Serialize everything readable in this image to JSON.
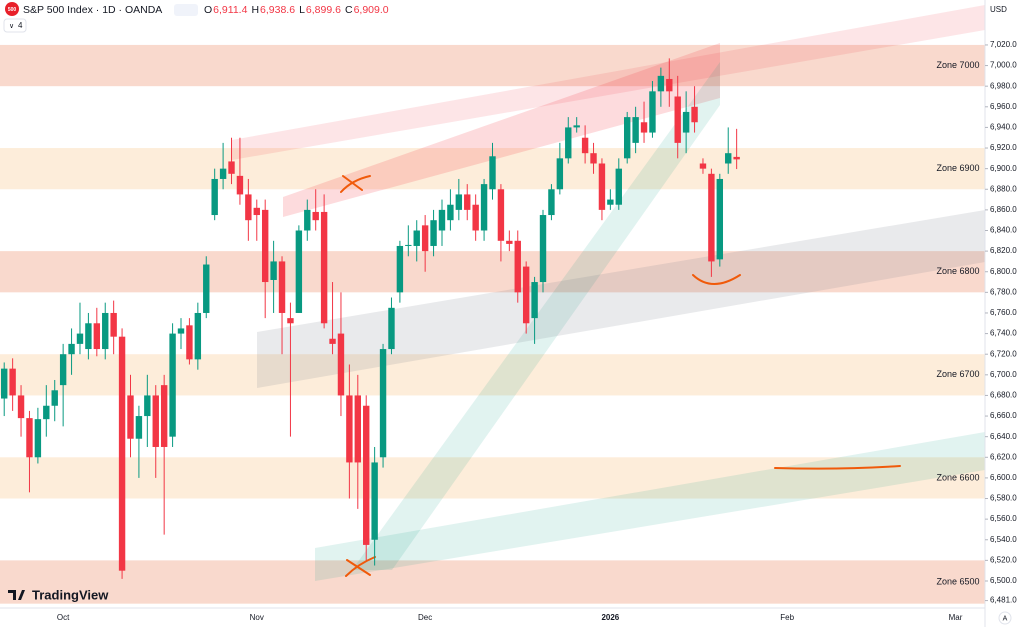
{
  "header": {
    "icon": "500",
    "title": "S&P 500 Index · 1D · OANDA",
    "ohlc": [
      {
        "key": "O",
        "value": "6,911.4"
      },
      {
        "key": "H",
        "value": "6,938.6"
      },
      {
        "key": "L",
        "value": "6,899.6"
      },
      {
        "key": "C",
        "value": "6,909.0"
      }
    ],
    "indicators": "4",
    "currency": "USD",
    "logo": "TradingView",
    "auto_button": "A"
  },
  "chart_data": {
    "type": "candlestick",
    "categories": [
      null,
      null,
      null,
      null,
      null,
      null,
      null,
      "Oct",
      null,
      null,
      null,
      null,
      null,
      null,
      null,
      null,
      null,
      null,
      null,
      null,
      null,
      null,
      null,
      null,
      null,
      null,
      null,
      null,
      null,
      null,
      "Nov",
      null,
      null,
      null,
      null,
      null,
      null,
      null,
      null,
      null,
      null,
      null,
      null,
      null,
      null,
      null,
      null,
      null,
      null,
      null,
      "Dec",
      null,
      null,
      null,
      null,
      null,
      null,
      null,
      null,
      null,
      null,
      null,
      null,
      null,
      null,
      null,
      null,
      null,
      null,
      null,
      null,
      null,
      "2026",
      null,
      null,
      null,
      null,
      null,
      null,
      null,
      null,
      null,
      null,
      null,
      null,
      null,
      null,
      null,
      null,
      null,
      null,
      null,
      null,
      "Feb",
      null,
      null,
      null,
      null,
      null,
      null,
      null,
      null,
      null,
      null,
      null,
      null,
      null,
      null,
      null,
      null,
      null,
      null,
      null,
      "Mar",
      null,
      null,
      null
    ],
    "open": [
      6677,
      6706,
      6680,
      6658,
      6620,
      6657,
      6670,
      6690,
      6720,
      6730,
      6725,
      6750,
      6725,
      6760,
      6737,
      6680,
      6638,
      6660,
      6680,
      6690,
      6640,
      6740,
      6748,
      6715,
      6760,
      6855,
      6890,
      6907,
      6893,
      6875,
      6862,
      6860,
      6792,
      6810,
      6755,
      6760,
      6840,
      6858,
      6858,
      6735,
      6740,
      6680,
      6680,
      6670,
      6540,
      6620,
      6725,
      6780,
      6825,
      6825,
      6845,
      6825,
      6840,
      6850,
      6860,
      6875,
      6865,
      6840,
      6880,
      6880,
      6830,
      6830,
      6805,
      6755,
      6790,
      6855,
      6880,
      6910,
      6940,
      6930,
      6915,
      6905,
      6865,
      6865,
      6910,
      6925,
      6945,
      6935,
      6975,
      6987,
      6970,
      6935,
      6960,
      6905,
      6895,
      6812,
      6905,
      6911.4,
      null,
      null,
      null,
      null,
      null,
      null,
      null,
      null,
      null,
      null,
      null,
      null,
      null,
      null,
      null,
      null,
      null,
      null,
      null,
      null,
      null,
      null,
      null,
      null,
      null,
      null,
      null,
      null,
      null
    ],
    "high": [
      6712,
      6716,
      6690,
      6665,
      6668,
      6690,
      6695,
      6730,
      6745,
      6770,
      6760,
      6765,
      6770,
      6772,
      6745,
      6700,
      6670,
      6700,
      6690,
      6700,
      6750,
      6755,
      6755,
      6770,
      6815,
      6900,
      6925,
      6930,
      6930,
      6890,
      6870,
      6870,
      6830,
      6815,
      6770,
      6845,
      6870,
      6880,
      6875,
      6790,
      6780,
      6710,
      6700,
      6680,
      6630,
      6730,
      6775,
      6830,
      6845,
      6850,
      6855,
      6860,
      6870,
      6880,
      6890,
      6885,
      6875,
      6890,
      6925,
      6885,
      6840,
      6840,
      6810,
      6795,
      6860,
      6885,
      6925,
      6950,
      6950,
      6942,
      6925,
      6910,
      6880,
      6910,
      6955,
      6960,
      6965,
      6985,
      6998,
      7007,
      6990,
      6975,
      6980,
      6910,
      6900,
      6895,
      6940,
      6938.6,
      null,
      null,
      null,
      null,
      null,
      null,
      null,
      null,
      null,
      null,
      null,
      null,
      null,
      null,
      null,
      null,
      null,
      null,
      null,
      null,
      null,
      null,
      null,
      null,
      null,
      null,
      null,
      null,
      null
    ],
    "low": [
      6660,
      6665,
      6640,
      6586,
      6614,
      6640,
      6655,
      6650,
      6700,
      6720,
      6715,
      6718,
      6715,
      6720,
      6502,
      6620,
      6600,
      6630,
      6600,
      6545,
      6630,
      6725,
      6710,
      6705,
      6755,
      6850,
      6880,
      6885,
      6865,
      6830,
      6830,
      6755,
      6760,
      6720,
      6640,
      6760,
      6830,
      6840,
      6745,
      6720,
      6660,
      6580,
      6570,
      6520,
      6515,
      6610,
      6720,
      6770,
      6815,
      6810,
      6800,
      6815,
      6825,
      6840,
      6850,
      6850,
      6830,
      6830,
      6870,
      6810,
      6820,
      6770,
      6740,
      6730,
      6780,
      6850,
      6875,
      6905,
      6935,
      6905,
      6895,
      6850,
      6860,
      6860,
      6905,
      6915,
      6925,
      6930,
      6960,
      6960,
      6910,
      6915,
      6935,
      6895,
      6795,
      6805,
      6895,
      6899.6,
      null,
      null,
      null,
      null,
      null,
      null,
      null,
      null,
      null,
      null,
      null,
      null,
      null,
      null,
      null,
      null,
      null,
      null,
      null,
      null,
      null,
      null,
      null,
      null,
      null,
      null,
      null,
      null,
      null
    ],
    "close": [
      6706,
      6680,
      6658,
      6620,
      6657,
      6670,
      6685,
      6720,
      6730,
      6740,
      6750,
      6725,
      6760,
      6737,
      6510,
      6638,
      6660,
      6680,
      6630,
      6630,
      6740,
      6745,
      6715,
      6760,
      6807,
      6890,
      6900,
      6895,
      6875,
      6850,
      6855,
      6790,
      6810,
      6760,
      6750,
      6840,
      6860,
      6850,
      6750,
      6730,
      6680,
      6615,
      6615,
      6535,
      6615,
      6725,
      6765,
      6825,
      6826,
      6840,
      6820,
      6850,
      6860,
      6865,
      6875,
      6860,
      6840,
      6885,
      6912,
      6830,
      6827,
      6780,
      6750,
      6790,
      6855,
      6880,
      6910,
      6940,
      6942,
      6915,
      6905,
      6860,
      6870,
      6900,
      6950,
      6950,
      6935,
      6975,
      6990,
      6975,
      6925,
      6955,
      6945,
      6900,
      6810,
      6890,
      6915,
      6909.0,
      null,
      null,
      null,
      null,
      null,
      null,
      null,
      null,
      null,
      null,
      null,
      null,
      null,
      null,
      null,
      null,
      null,
      null,
      null,
      null,
      null,
      null,
      null,
      null,
      null,
      null,
      null,
      null,
      null
    ],
    "up_color": "#089981",
    "down_color": "#f23645",
    "ylim": [
      6473.8,
      7063.6
    ],
    "yticks": [
      {
        "value": 6481,
        "label": "6,481.0"
      },
      {
        "value": 6500,
        "label": "6,500.0"
      },
      {
        "value": 6520,
        "label": "6,520.0"
      },
      {
        "value": 6540,
        "label": "6,540.0"
      },
      {
        "value": 6560,
        "label": "6,560.0"
      },
      {
        "value": 6580,
        "label": "6,580.0"
      },
      {
        "value": 6600,
        "label": "6,600.0"
      },
      {
        "value": 6620,
        "label": "6,620.0"
      },
      {
        "value": 6640,
        "label": "6,640.0"
      },
      {
        "value": 6660,
        "label": "6,660.0"
      },
      {
        "value": 6680,
        "label": "6,680.0"
      },
      {
        "value": 6700,
        "label": "6,700.0"
      },
      {
        "value": 6720,
        "label": "6,720.0"
      },
      {
        "value": 6740,
        "label": "6,740.0"
      },
      {
        "value": 6760,
        "label": "6,760.0"
      },
      {
        "value": 6780,
        "label": "6,780.0"
      },
      {
        "value": 6800,
        "label": "6,800.0"
      },
      {
        "value": 6820,
        "label": "6,820.0"
      },
      {
        "value": 6840,
        "label": "6,840.0"
      },
      {
        "value": 6860,
        "label": "6,860.0"
      },
      {
        "value": 6880,
        "label": "6,880.0"
      },
      {
        "value": 6900,
        "label": "6,900.0"
      },
      {
        "value": 6920,
        "label": "6,920.0"
      },
      {
        "value": 6940,
        "label": "6,940.0"
      },
      {
        "value": 6960,
        "label": "6,960.0"
      },
      {
        "value": 6980,
        "label": "6,980.0"
      },
      {
        "value": 7000,
        "label": "7,000.0"
      },
      {
        "value": 7020,
        "label": "7,020.0"
      }
    ],
    "zones": [
      {
        "label": "Zone 7000",
        "low": 6980,
        "high": 7020,
        "color": "#f8d5c8"
      },
      {
        "label": "Zone 6900",
        "low": 6880,
        "high": 6920,
        "color": "#fdebd6"
      },
      {
        "label": "Zone 6800",
        "low": 6780,
        "high": 6820,
        "color": "#f8d5c8"
      },
      {
        "label": "Zone 6700",
        "low": 6680,
        "high": 6720,
        "color": "#fdebd6"
      },
      {
        "label": "Zone 6600",
        "low": 6580,
        "high": 6620,
        "color": "#fdebd6"
      },
      {
        "label": "Zone 6500",
        "low": 6478,
        "high": 6520,
        "color": "#f8d5c8"
      }
    ]
  }
}
